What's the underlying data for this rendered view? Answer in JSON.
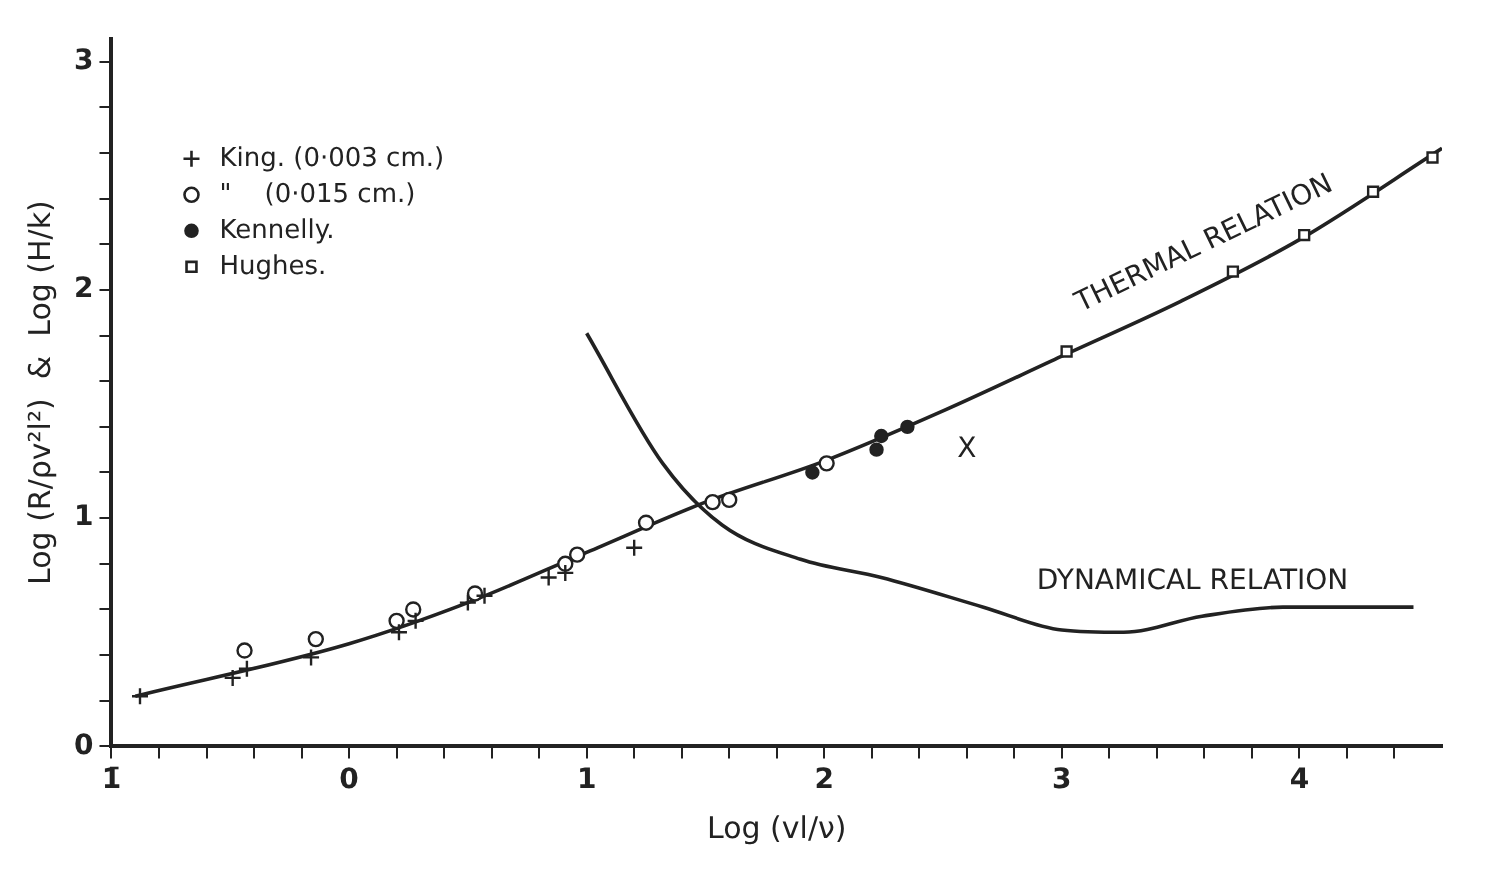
{
  "chart_data": {
    "type": "scatter",
    "xlabel": "Log (vl/ν)",
    "ylabel": "Log (R/ρv²l²)  &  Log (H/k)",
    "xlim": [
      -1,
      4.6
    ],
    "ylim": [
      0,
      3.1
    ],
    "xticks": [
      {
        "value": -1,
        "label": "1̄"
      },
      {
        "value": -0.8,
        "label": null
      },
      {
        "value": -0.6,
        "label": null
      },
      {
        "value": -0.4,
        "label": null
      },
      {
        "value": -0.2,
        "label": null
      },
      0,
      {
        "value": 0.2,
        "label": null
      },
      {
        "value": 0.4,
        "label": null
      },
      {
        "value": 0.6,
        "label": null
      },
      {
        "value": 0.8,
        "label": null
      },
      1,
      {
        "value": 1.2,
        "label": null
      },
      {
        "value": 1.4,
        "label": null
      },
      {
        "value": 1.6,
        "label": null
      },
      {
        "value": 1.8,
        "label": null
      },
      2,
      {
        "value": 2.2,
        "label": null
      },
      {
        "value": 2.4,
        "label": null
      },
      {
        "value": 2.6,
        "label": null
      },
      {
        "value": 2.8,
        "label": null
      },
      3,
      {
        "value": 3.2,
        "label": null
      },
      {
        "value": 3.4,
        "label": null
      },
      {
        "value": 3.6,
        "label": null
      },
      {
        "value": 3.8,
        "label": null
      },
      4,
      {
        "value": 4.2,
        "label": null
      },
      {
        "value": 4.4,
        "label": null
      }
    ],
    "yticks": [
      0,
      {
        "value": 0.2,
        "label": null
      },
      {
        "value": 0.4,
        "label": null
      },
      {
        "value": 0.6,
        "label": null
      },
      {
        "value": 0.8,
        "label": null
      },
      1,
      {
        "value": 1.2,
        "label": null
      },
      {
        "value": 1.4,
        "label": null
      },
      {
        "value": 1.6,
        "label": null
      },
      {
        "value": 1.8,
        "label": null
      },
      2,
      {
        "value": 2.2,
        "label": null
      },
      {
        "value": 2.4,
        "label": null
      },
      {
        "value": 2.6,
        "label": null
      },
      {
        "value": 2.8,
        "label": null
      },
      3
    ],
    "grid": false,
    "legend": "top left",
    "series": [
      {
        "name": "King. (0·003 cm.)",
        "type": "scatter",
        "marker": "cross",
        "color": "#222222",
        "x": [
          -0.88,
          -0.49,
          -0.43,
          -0.16,
          0.21,
          0.28,
          0.5,
          0.57,
          0.84,
          0.91,
          1.2
        ],
        "values": [
          0.22,
          0.3,
          0.34,
          0.39,
          0.5,
          0.55,
          0.63,
          0.66,
          0.74,
          0.76,
          0.87
        ]
      },
      {
        "name": "\"    (0·015 cm.)",
        "type": "scatter",
        "marker": "circle",
        "color": "#222222",
        "x": [
          -0.44,
          -0.14,
          0.2,
          0.27,
          0.53,
          0.91,
          0.96,
          1.25,
          1.53,
          1.6,
          2.01
        ],
        "values": [
          0.42,
          0.47,
          0.55,
          0.6,
          0.67,
          0.8,
          0.84,
          0.98,
          1.07,
          1.08,
          1.24
        ]
      },
      {
        "name": "Kennelly.",
        "type": "scatter",
        "marker": "filled-circle",
        "color": "#222222",
        "x": [
          1.95,
          2.22,
          2.24,
          2.35
        ],
        "values": [
          1.2,
          1.3,
          1.36,
          1.4
        ]
      },
      {
        "name": "Hughes.",
        "type": "scatter",
        "marker": "square",
        "color": "#222222",
        "x": [
          3.02,
          3.72,
          4.02,
          4.31,
          4.56
        ],
        "values": [
          1.73,
          2.08,
          2.24,
          2.43,
          2.58
        ]
      },
      {
        "type": "line",
        "marker": "none",
        "color": "#222222",
        "x": [
          -0.9,
          0,
          0.5,
          1,
          1.5,
          2,
          2.5,
          3,
          3.5,
          4,
          4.6
        ],
        "values": [
          0.22,
          0.45,
          0.63,
          0.85,
          1.07,
          1.25,
          1.47,
          1.71,
          1.95,
          2.22,
          2.62
        ]
      },
      {
        "type": "line",
        "marker": "none",
        "color": "#222222",
        "x": [
          1,
          1.32,
          1.57,
          1.9,
          2.24,
          2.67,
          3,
          3.26,
          3.59,
          3.93,
          4.48
        ],
        "values": [
          1.81,
          1.24,
          0.97,
          0.82,
          0.74,
          0.61,
          0.51,
          0.5,
          0.57,
          0.61,
          0.61
        ]
      }
    ],
    "annotations": [
      "THERMAL RELATION",
      "DYNAMICAL RELATION",
      "X"
    ]
  }
}
